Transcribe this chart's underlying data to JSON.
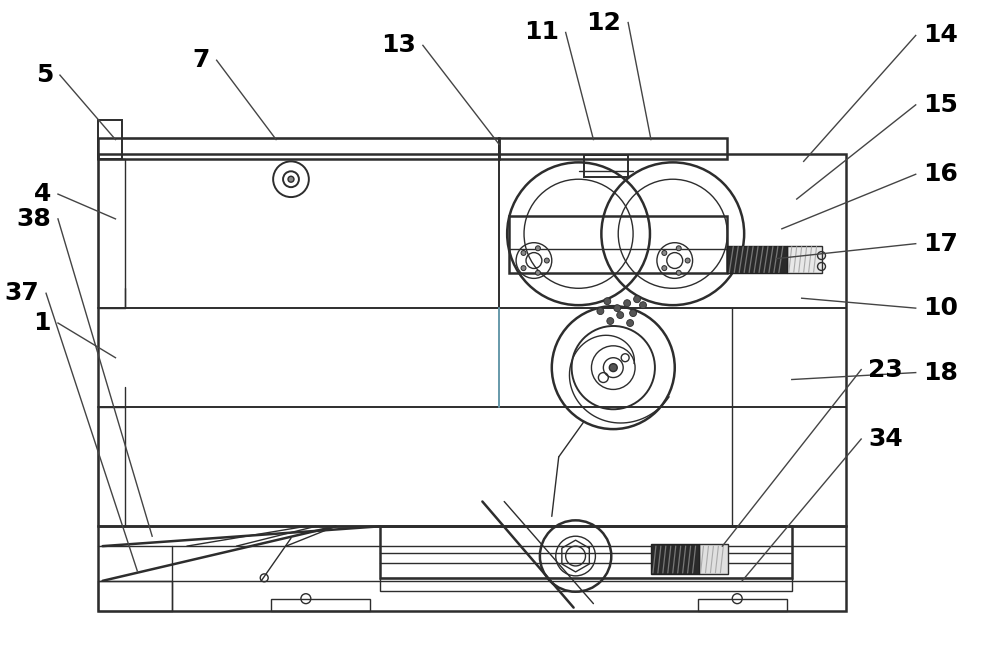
{
  "bg_color": "#ffffff",
  "line_color": "#2d2d2d",
  "label_color": "#000000",
  "figsize": [
    10.0,
    6.48
  ],
  "dpi": 100
}
